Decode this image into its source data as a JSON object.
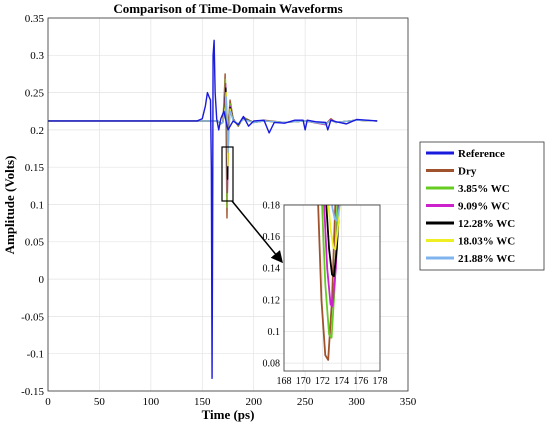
{
  "chart_data": {
    "type": "line",
    "title": "Comparison of Time-Domain Waveforms",
    "xlabel": "Time (ps)",
    "ylabel": "Amplitude (Volts)",
    "xlim": [
      0,
      350
    ],
    "ylim": [
      -0.15,
      0.35
    ],
    "xticks": [
      0,
      50,
      100,
      150,
      200,
      250,
      300,
      350
    ],
    "yticks": [
      -0.15,
      -0.1,
      -0.05,
      0,
      0.05,
      0.1,
      0.15,
      0.2,
      0.25,
      0.3,
      0.35
    ],
    "grid": true,
    "legend_position": "right",
    "series": [
      {
        "name": "Reference",
        "color": "#1a1adc",
        "x": [
          0,
          145,
          150,
          153,
          155,
          157,
          158,
          158.8,
          159.5,
          160,
          160.5,
          161.5,
          162.5,
          164,
          166,
          168,
          171,
          175,
          180,
          185,
          190,
          195,
          200,
          210,
          215,
          220,
          230,
          240,
          248,
          250,
          252,
          260,
          270,
          272,
          275,
          280,
          290,
          300,
          310,
          320
        ],
        "y": [
          0.212,
          0.212,
          0.215,
          0.232,
          0.25,
          0.243,
          0.24,
          0.15,
          -0.133,
          0.05,
          0.3,
          0.32,
          0.25,
          0.215,
          0.2,
          0.215,
          0.225,
          0.2,
          0.212,
          0.207,
          0.218,
          0.205,
          0.212,
          0.213,
          0.196,
          0.21,
          0.209,
          0.213,
          0.213,
          0.2,
          0.213,
          0.211,
          0.21,
          0.2,
          0.213,
          0.211,
          0.208,
          0.214,
          0.213,
          0.212
        ]
      },
      {
        "name": "Dry",
        "color": "#a0522d",
        "x": [
          0,
          165,
          168,
          170,
          171.5,
          172.2,
          173,
          174,
          175,
          177,
          180,
          185,
          190,
          200,
          210,
          230,
          250,
          270,
          275,
          280,
          300,
          320
        ],
        "y": [
          0.212,
          0.212,
          0.208,
          0.21,
          0.25,
          0.275,
          0.22,
          0.082,
          0.2,
          0.24,
          0.215,
          0.205,
          0.217,
          0.21,
          0.213,
          0.21,
          0.212,
          0.208,
          0.215,
          0.21,
          0.213,
          0.212
        ]
      },
      {
        "name": "3.85% WC",
        "color": "#66cc22",
        "x": [
          0,
          165,
          168,
          170,
          171.8,
          172.5,
          173.3,
          174.2,
          175.2,
          177,
          180,
          185,
          190,
          200,
          210,
          230,
          250,
          270,
          275,
          280,
          300,
          320
        ],
        "y": [
          0.212,
          0.212,
          0.208,
          0.21,
          0.245,
          0.268,
          0.22,
          0.096,
          0.2,
          0.235,
          0.214,
          0.206,
          0.216,
          0.21,
          0.212,
          0.21,
          0.212,
          0.207,
          0.214,
          0.21,
          0.213,
          0.212
        ]
      },
      {
        "name": "9.09% WC",
        "color": "#cc22cc",
        "x": [
          0,
          165,
          168,
          170,
          172,
          172.7,
          173.5,
          174.4,
          175.4,
          177,
          180,
          185,
          190,
          200,
          210,
          230,
          250,
          270,
          275,
          280,
          300,
          320
        ],
        "y": [
          0.212,
          0.212,
          0.209,
          0.21,
          0.24,
          0.262,
          0.22,
          0.116,
          0.2,
          0.232,
          0.214,
          0.207,
          0.215,
          0.21,
          0.212,
          0.21,
          0.212,
          0.207,
          0.214,
          0.21,
          0.213,
          0.212
        ]
      },
      {
        "name": "12.28% WC",
        "color": "#000000",
        "x": [
          0,
          165,
          168,
          170,
          172.2,
          172.9,
          173.7,
          174.6,
          175.6,
          177,
          180,
          185,
          190,
          200,
          210,
          230,
          250,
          270,
          275,
          280,
          300,
          320
        ],
        "y": [
          0.212,
          0.212,
          0.209,
          0.21,
          0.236,
          0.256,
          0.22,
          0.134,
          0.2,
          0.23,
          0.214,
          0.207,
          0.215,
          0.21,
          0.212,
          0.21,
          0.212,
          0.208,
          0.213,
          0.21,
          0.213,
          0.212
        ]
      },
      {
        "name": "18.03% WC",
        "color": "#eeee22",
        "x": [
          0,
          165,
          168,
          170,
          172.4,
          173.1,
          173.9,
          174.8,
          175.8,
          177,
          180,
          185,
          190,
          200,
          210,
          230,
          250,
          270,
          275,
          280,
          300,
          320
        ],
        "y": [
          0.212,
          0.212,
          0.209,
          0.21,
          0.232,
          0.25,
          0.22,
          0.152,
          0.2,
          0.228,
          0.213,
          0.208,
          0.214,
          0.21,
          0.212,
          0.21,
          0.212,
          0.208,
          0.213,
          0.21,
          0.213,
          0.212
        ]
      },
      {
        "name": "21.88% WC",
        "color": "#80b4ee",
        "x": [
          0,
          165,
          168,
          170,
          172.6,
          173.3,
          174.1,
          175,
          176,
          177,
          180,
          185,
          190,
          200,
          210,
          230,
          250,
          270,
          275,
          280,
          300,
          320
        ],
        "y": [
          0.212,
          0.212,
          0.209,
          0.21,
          0.228,
          0.244,
          0.22,
          0.17,
          0.2,
          0.225,
          0.213,
          0.208,
          0.214,
          0.21,
          0.212,
          0.21,
          0.212,
          0.208,
          0.213,
          0.21,
          0.213,
          0.212
        ]
      }
    ],
    "inset": {
      "xlim": [
        168,
        178
      ],
      "ylim": [
        0.075,
        0.18
      ],
      "xticks": [
        168,
        170,
        172,
        174,
        176,
        178
      ],
      "yticks": [
        0.08,
        0.1,
        0.12,
        0.14,
        0.16,
        0.18
      ],
      "series": [
        {
          "name": "Dry",
          "color": "#a0522d",
          "x": [
            171.5,
            171.9,
            172.3,
            172.6,
            173,
            173.4
          ],
          "y": [
            0.19,
            0.12,
            0.085,
            0.082,
            0.12,
            0.19
          ]
        },
        {
          "name": "3.85% WC",
          "color": "#66cc22",
          "x": [
            171.9,
            172.3,
            172.7,
            172.95,
            173.3,
            173.6
          ],
          "y": [
            0.19,
            0.13,
            0.098,
            0.096,
            0.13,
            0.19
          ]
        },
        {
          "name": "9.09% WC",
          "color": "#cc22cc",
          "x": [
            172.1,
            172.5,
            172.85,
            173.05,
            173.4,
            173.75
          ],
          "y": [
            0.19,
            0.14,
            0.117,
            0.116,
            0.14,
            0.19
          ]
        },
        {
          "name": "12.28% WC",
          "color": "#000000",
          "x": [
            172.3,
            172.7,
            173,
            173.2,
            173.5,
            173.85
          ],
          "y": [
            0.19,
            0.152,
            0.136,
            0.135,
            0.152,
            0.19
          ]
        },
        {
          "name": "18.03% WC",
          "color": "#eeee22",
          "x": [
            172.5,
            172.85,
            173.15,
            173.35,
            173.6,
            173.95
          ],
          "y": [
            0.19,
            0.165,
            0.153,
            0.152,
            0.165,
            0.19
          ]
        },
        {
          "name": "21.88% WC",
          "color": "#80b4ee",
          "x": [
            172.75,
            173.05,
            173.3,
            173.5,
            173.75,
            174.05
          ],
          "y": [
            0.19,
            0.178,
            0.171,
            0.17,
            0.178,
            0.19
          ]
        }
      ]
    }
  }
}
